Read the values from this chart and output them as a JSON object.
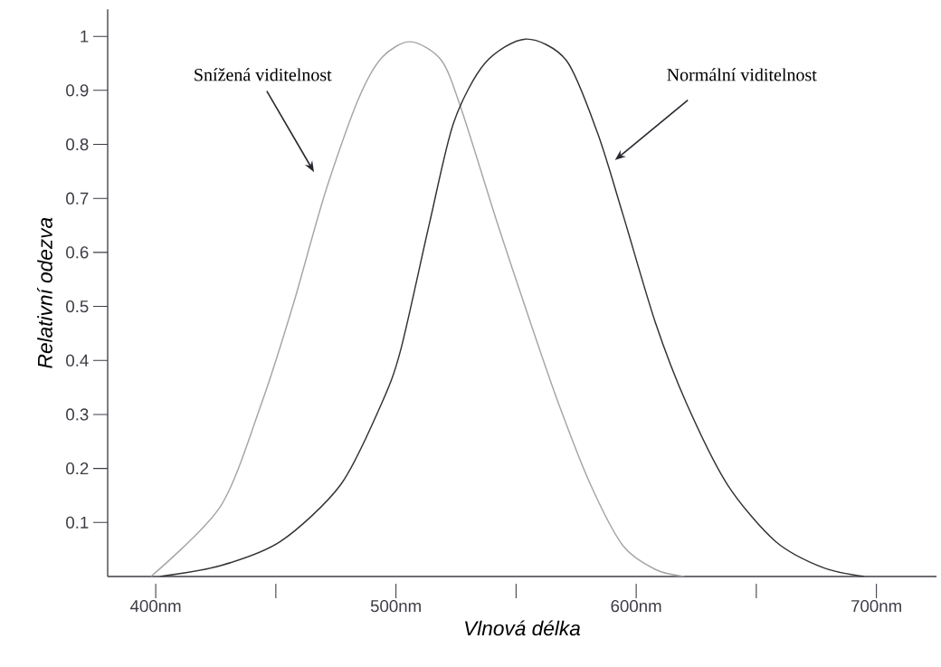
{
  "chart_data": {
    "type": "line",
    "xlabel": "Vlnová délka",
    "ylabel": "Relativní odezva",
    "xlim": [
      380,
      725
    ],
    "ylim": [
      0,
      1.05
    ],
    "xticks": [
      {
        "value": 400,
        "label": "400nm"
      },
      {
        "value": 450,
        "label": null
      },
      {
        "value": 500,
        "label": "500nm"
      },
      {
        "value": 550,
        "label": null
      },
      {
        "value": 600,
        "label": "600nm"
      },
      {
        "value": 650,
        "label": null
      },
      {
        "value": 700,
        "label": "700nm"
      }
    ],
    "yticks": [
      0.1,
      0.2,
      0.3,
      0.4,
      0.5,
      0.6,
      0.7,
      0.8,
      0.9,
      1
    ],
    "series": [
      {
        "color": "#a6a6a6",
        "x": [
          398,
          427,
          444,
          457,
          470.5,
          484,
          494,
          506,
          519,
          527.6,
          542.5,
          556,
          567.7,
          581,
          594.5,
          608,
          620
        ],
        "values": [
          0,
          0.13,
          0.32,
          0.5,
          0.71,
          0.88,
          0.96,
          0.99,
          0.955,
          0.86,
          0.65,
          0.47,
          0.32,
          0.17,
          0.057,
          0.013,
          0
        ]
      },
      {
        "color": "#333333",
        "x": [
          401.7,
          427,
          452,
          477,
          494,
          502,
          514,
          524,
          537,
          554,
          571,
          584,
          594.5,
          608,
          621,
          638,
          658,
          678,
          695
        ],
        "values": [
          0,
          0.02,
          0.065,
          0.17,
          0.32,
          0.42,
          0.655,
          0.84,
          0.95,
          0.995,
          0.955,
          0.82,
          0.67,
          0.47,
          0.32,
          0.17,
          0.065,
          0.016,
          0
        ]
      }
    ],
    "annotations": [
      "Snížená viditelnost",
      "Normální viditelnost"
    ]
  }
}
